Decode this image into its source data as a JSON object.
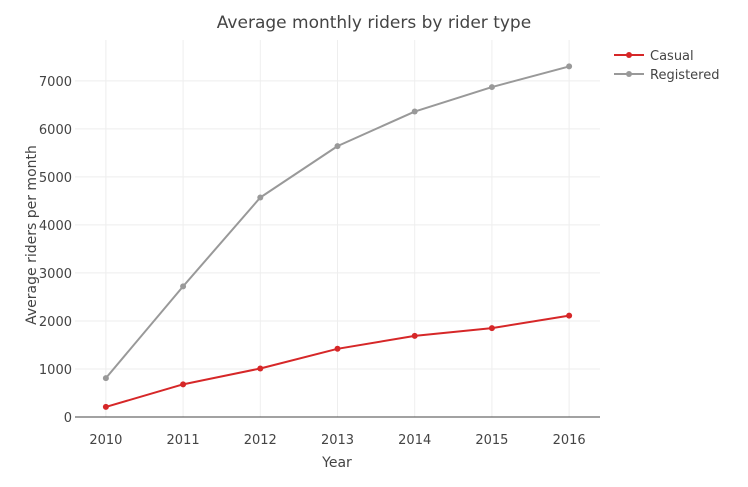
{
  "chart_data": {
    "type": "line",
    "title": "Average monthly riders by rider type",
    "xlabel": "Year",
    "ylabel": "Average riders per month",
    "x": [
      2010,
      2011,
      2012,
      2013,
      2014,
      2015,
      2016
    ],
    "x_tick_labels": [
      "2010",
      "2011",
      "2012",
      "2013",
      "2014",
      "2015",
      "2016"
    ],
    "y_ticks": [
      0,
      1000,
      2000,
      3000,
      4000,
      5000,
      6000,
      7000
    ],
    "y_tick_labels": [
      "0",
      "1000",
      "2000",
      "3000",
      "4000",
      "5000",
      "6000",
      "7000"
    ],
    "xlim": [
      2009.6,
      2016.4
    ],
    "ylim": [
      0,
      7850
    ],
    "grid": true,
    "legend_position": "top-right",
    "series": [
      {
        "name": "Casual",
        "color": "#d62728",
        "values": [
          210,
          680,
          1010,
          1420,
          1690,
          1850,
          2110
        ]
      },
      {
        "name": "Registered",
        "color": "#999999",
        "values": [
          810,
          2720,
          4570,
          5640,
          6360,
          6870,
          7300
        ]
      }
    ]
  }
}
